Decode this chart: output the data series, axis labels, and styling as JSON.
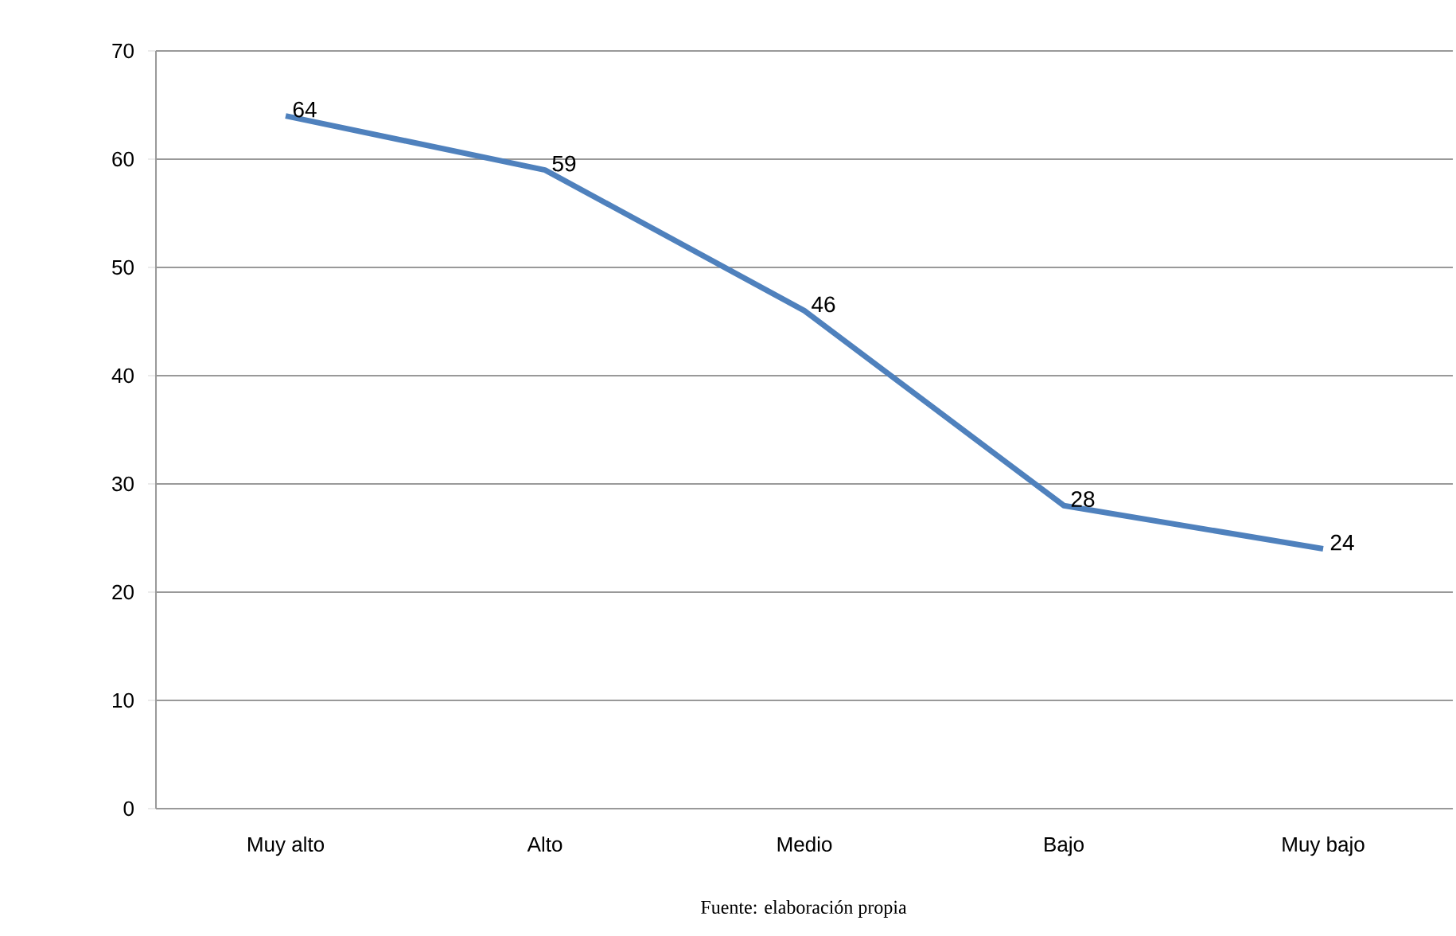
{
  "chart_data": {
    "type": "line",
    "categories": [
      "Muy alto",
      "Alto",
      "Medio",
      "Bajo",
      "Muy bajo"
    ],
    "series": [
      {
        "color": "#4f81bd",
        "values": [
          64,
          59,
          46,
          28,
          24
        ]
      }
    ],
    "ylim": [
      0,
      70
    ],
    "yticks": [
      0,
      10,
      20,
      30,
      40,
      50,
      60,
      70
    ],
    "grid": "y",
    "data_labels": true,
    "annotations": [
      "Fuente: elaboración propia"
    ]
  }
}
